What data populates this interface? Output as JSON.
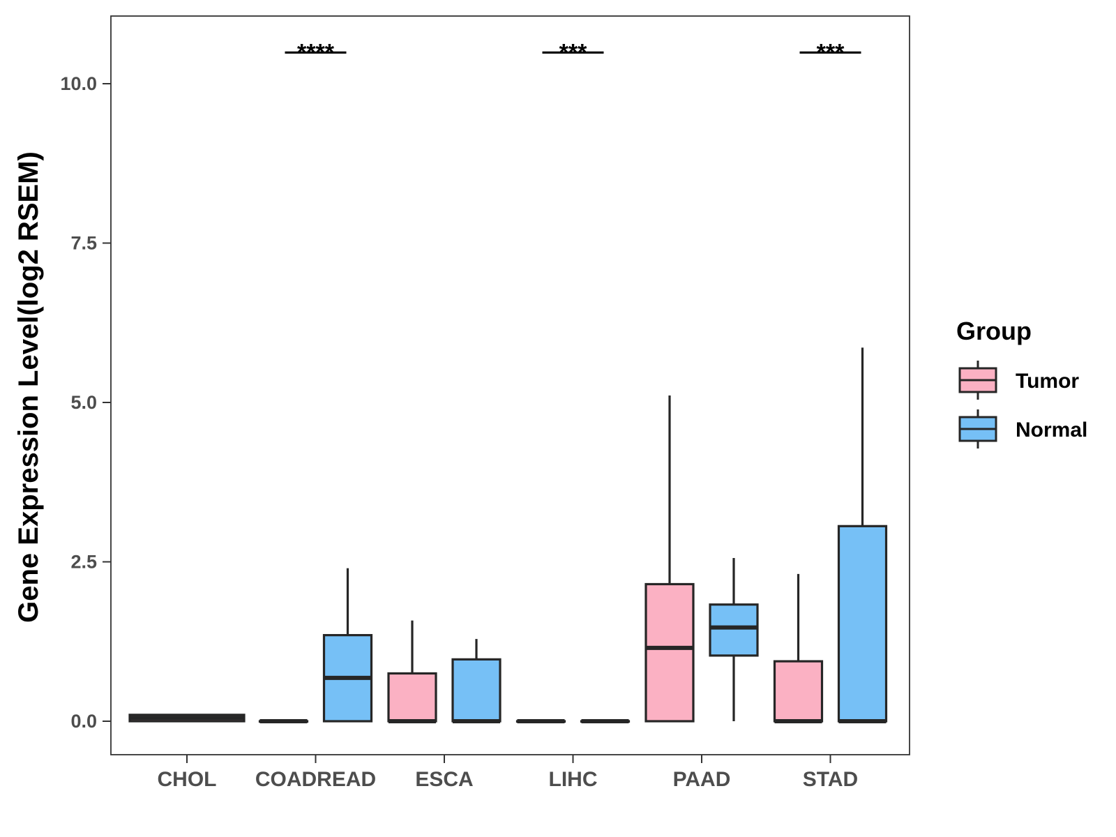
{
  "chart_data": {
    "type": "boxplot",
    "title": "",
    "xlabel": "",
    "ylabel": "Gene Expression Level(log2 RSEM)",
    "ylim": [
      -0.52,
      10.85
    ],
    "yticks": [
      0.0,
      2.5,
      5.0,
      7.5,
      10.0
    ],
    "ytick_labels": [
      "0.0",
      "2.5",
      "5.0",
      "7.5",
      "10.0"
    ],
    "categories": [
      "CHOL",
      "COADREAD",
      "ESCA",
      "LIHC",
      "PAAD",
      "STAD"
    ],
    "groups": [
      {
        "name": "Tumor",
        "color": "#fbb1c3"
      },
      {
        "name": "Normal",
        "color": "#76c0f6"
      }
    ],
    "legend": {
      "title": "Group",
      "position": "right"
    },
    "boxes": [
      {
        "category": "CHOL",
        "group": "Tumor",
        "min": 0.0,
        "q1": 0.0,
        "median": 0.05,
        "q3": 0.1,
        "max": 0.1
      },
      {
        "category": "COADREAD",
        "group": "Tumor",
        "min": 0.0,
        "q1": 0.0,
        "median": 0.0,
        "q3": 0.0,
        "max": 0.0
      },
      {
        "category": "COADREAD",
        "group": "Normal",
        "min": 0.0,
        "q1": 0.0,
        "median": 0.68,
        "q3": 1.35,
        "max": 2.4
      },
      {
        "category": "ESCA",
        "group": "Tumor",
        "min": 0.0,
        "q1": 0.0,
        "median": 0.0,
        "q3": 0.75,
        "max": 1.58
      },
      {
        "category": "ESCA",
        "group": "Normal",
        "min": 0.0,
        "q1": 0.0,
        "median": 0.0,
        "q3": 0.97,
        "max": 1.29
      },
      {
        "category": "LIHC",
        "group": "Tumor",
        "min": 0.0,
        "q1": 0.0,
        "median": 0.0,
        "q3": 0.0,
        "max": 0.0
      },
      {
        "category": "LIHC",
        "group": "Normal",
        "min": 0.0,
        "q1": 0.0,
        "median": 0.0,
        "q3": 0.0,
        "max": 0.0
      },
      {
        "category": "PAAD",
        "group": "Tumor",
        "min": 0.0,
        "q1": 0.0,
        "median": 1.15,
        "q3": 2.15,
        "max": 5.11
      },
      {
        "category": "PAAD",
        "group": "Normal",
        "min": 0.0,
        "q1": 1.03,
        "median": 1.47,
        "q3": 1.83,
        "max": 2.56
      },
      {
        "category": "STAD",
        "group": "Tumor",
        "min": 0.0,
        "q1": 0.0,
        "median": 0.0,
        "q3": 0.94,
        "max": 2.31
      },
      {
        "category": "STAD",
        "group": "Normal",
        "min": 0.0,
        "q1": 0.0,
        "median": 0.0,
        "q3": 3.06,
        "max": 5.86
      }
    ],
    "significance": [
      {
        "category": "COADREAD",
        "label": "****",
        "y": 10.5
      },
      {
        "category": "LIHC",
        "label": "***",
        "y": 10.5
      },
      {
        "category": "STAD",
        "label": "***",
        "y": 10.5
      }
    ]
  }
}
